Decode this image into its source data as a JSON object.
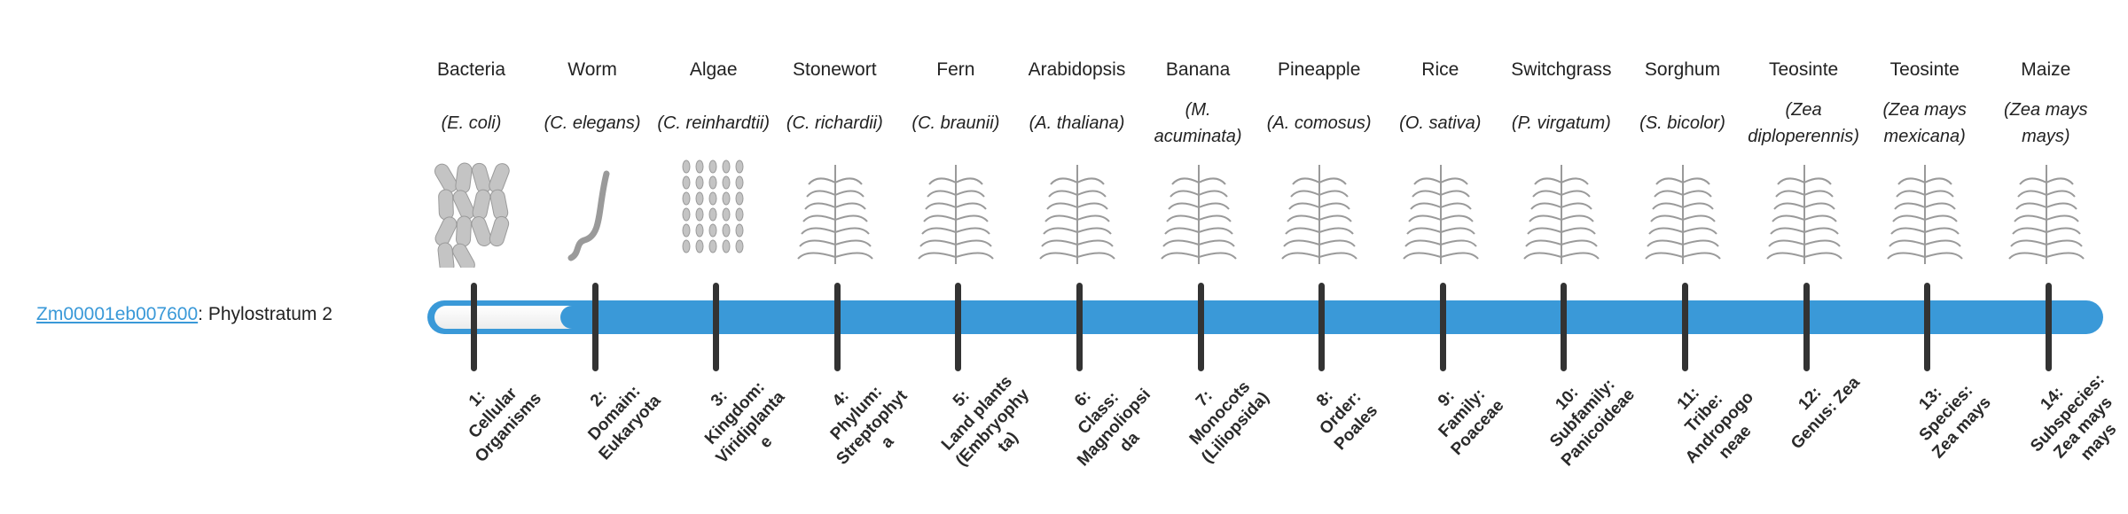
{
  "gene": {
    "id": "Zm00001eb007600",
    "suffix": ": Phylostratum 2"
  },
  "phylostratum": {
    "value": 2,
    "total": 14
  },
  "colors": {
    "bar": "#3a99d8",
    "tick": "#333333",
    "link": "#3a99d8"
  },
  "organisms": [
    {
      "name": "Bacteria",
      "sci": "E. coli",
      "icon": "bacteria-illustration"
    },
    {
      "name": "Worm",
      "sci": "C. elegans",
      "icon": "worm-illustration"
    },
    {
      "name": "Algae",
      "sci": "C. reinhardtii",
      "icon": "algae-illustration"
    },
    {
      "name": "Stonewort",
      "sci": "C. richardii",
      "icon": "stonewort-illustration"
    },
    {
      "name": "Fern",
      "sci": "C. braunii",
      "icon": "fern-illustration"
    },
    {
      "name": "Arabidopsis",
      "sci": "A. thaliana",
      "icon": "arabidopsis-illustration"
    },
    {
      "name": "Banana",
      "sci": "M. acuminata",
      "icon": "banana-illustration"
    },
    {
      "name": "Pineapple",
      "sci": "A. comosus",
      "icon": "pineapple-illustration"
    },
    {
      "name": "Rice",
      "sci": "O. sativa",
      "icon": "rice-illustration"
    },
    {
      "name": "Switchgrass",
      "sci": "P. virgatum",
      "icon": "switchgrass-illustration"
    },
    {
      "name": "Sorghum",
      "sci": "S. bicolor",
      "icon": "sorghum-illustration"
    },
    {
      "name": "Teosinte",
      "sci": "Zea diploperennis",
      "icon": "teosinte-illustration"
    },
    {
      "name": "Teosinte",
      "sci": "Zea mays mexicana",
      "icon": "teosinte-illustration"
    },
    {
      "name": "Maize",
      "sci": "Zea mays mays",
      "icon": "maize-illustration"
    }
  ],
  "strata": [
    {
      "num": "1:",
      "label": "Cellular Organisms"
    },
    {
      "num": "2:",
      "label": "Domain: Eukaryota"
    },
    {
      "num": "3:",
      "label": "Kingdom: Viridiplantae"
    },
    {
      "num": "4:",
      "label": "Phylum: Streptophyta"
    },
    {
      "num": "5:",
      "label": "Land plants (Embryophyta)"
    },
    {
      "num": "6:",
      "label": "Class: Magnoliopsida"
    },
    {
      "num": "7:",
      "label": "Monocots (Liliopsida)"
    },
    {
      "num": "8:",
      "label": "Order: Poales"
    },
    {
      "num": "9:",
      "label": "Family: Poaceae"
    },
    {
      "num": "10:",
      "label": "Subfamily: Panicoideae"
    },
    {
      "num": "11:",
      "label": "Tribe: Andropogoneae"
    },
    {
      "num": "12:",
      "label": "Genus: Zea"
    },
    {
      "num": "13:",
      "label": "Species: Zea mays"
    },
    {
      "num": "14:",
      "label": "Subspecies: Zea mays mays"
    }
  ]
}
